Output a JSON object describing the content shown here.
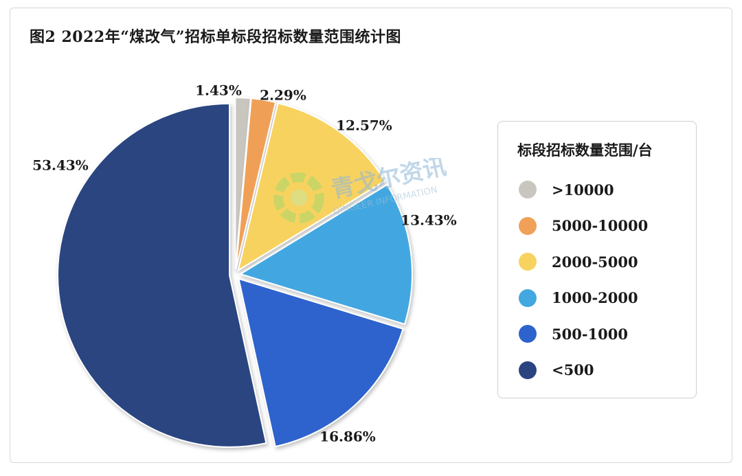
{
  "title": "图2 2022年“煤改气”招标单标段招标数量范围统计图",
  "watermark": {
    "name": "青戈尔资讯",
    "sub": "QINGEER INFORMATION"
  },
  "legend": {
    "title": "标段招标数量范围/台"
  },
  "chart_data": {
    "type": "pie",
    "title": "图2 2022年“煤改气”招标单标段招标数量范围统计图",
    "legend_title": "标段招标数量范围/台",
    "legend_position": "right",
    "slices": [
      {
        "label": ">10000",
        "value": 1.43,
        "value_label": "1.43%",
        "color": "#c9c6c0"
      },
      {
        "label": "5000-10000",
        "value": 2.29,
        "value_label": "2.29%",
        "color": "#f0a057"
      },
      {
        "label": "2000-5000",
        "value": 12.57,
        "value_label": "12.57%",
        "color": "#f8d25e"
      },
      {
        "label": "1000-2000",
        "value": 13.43,
        "value_label": "13.43%",
        "color": "#43a7e0"
      },
      {
        "label": "500-1000",
        "value": 16.86,
        "value_label": "16.86%",
        "color": "#2e62cc"
      },
      {
        "label": "<500",
        "value": 53.43,
        "value_label": "53.43%",
        "color": "#2b4480"
      }
    ]
  }
}
